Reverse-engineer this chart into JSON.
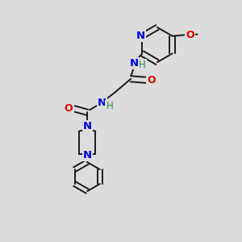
{
  "bg_color": "#dcdcdc",
  "bond_color": "#1a1a1a",
  "N_color": "#0000ee",
  "O_color": "#dd0000",
  "H_color": "#2e8b57",
  "bond_width": 1.4,
  "figsize": [
    3.0,
    3.0
  ],
  "dpi": 100,
  "xlim": [
    0,
    1
  ],
  "ylim": [
    0,
    1
  ]
}
